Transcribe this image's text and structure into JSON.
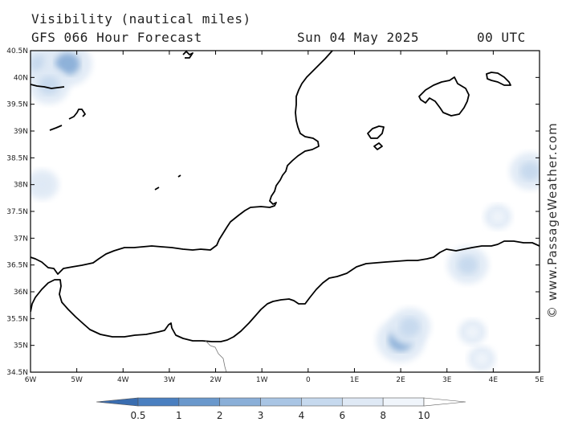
{
  "header": {
    "title": "Visibility (nautical miles)",
    "subtitle": "GFS 066 Hour Forecast",
    "date": "Sun 04 May 2025",
    "time": "00 UTC"
  },
  "map_data": {
    "region": {
      "lon_min": -6,
      "lon_max": 5,
      "lat_min": 34.5,
      "lat_max": 40.5
    },
    "lat_labels": [
      "40.5N",
      "40N",
      "39.5N",
      "39N",
      "38.5N",
      "38N",
      "37.5N",
      "37N",
      "36.5N",
      "36N",
      "35.5N",
      "35N",
      "34.5N"
    ],
    "lon_labels": [
      "6W",
      "5W",
      "4W",
      "3W",
      "2W",
      "1W",
      "0",
      "1E",
      "2E",
      "3E",
      "4E",
      "5E"
    ],
    "credit": "© www.PassageWeather.com",
    "legend": {
      "labels": [
        "0.5",
        "1",
        "2",
        "3",
        "4",
        "6",
        "8",
        "10"
      ],
      "colors": [
        "#4a7fc0",
        "#6a98cc",
        "#8aafd8",
        "#a9c5e4",
        "#c6d9ee",
        "#dfe9f5",
        "#f0f5fb"
      ]
    },
    "low_visibility_areas": [
      {
        "lon": -5.8,
        "lat": 40.25,
        "visibility": 4
      },
      {
        "lon": -5.2,
        "lat": 40.25,
        "visibility": 2
      },
      {
        "lon": -5.6,
        "lat": 39.85,
        "visibility": 4
      },
      {
        "lon": -5.75,
        "lat": 38.0,
        "visibility": 6
      },
      {
        "lon": 2.0,
        "lat": 35.1,
        "visibility": 2
      },
      {
        "lon": 2.2,
        "lat": 35.35,
        "visibility": 4
      },
      {
        "lon": 3.45,
        "lat": 36.5,
        "visibility": 4
      },
      {
        "lon": 4.8,
        "lat": 38.25,
        "visibility": 4
      },
      {
        "lon": 4.1,
        "lat": 37.4,
        "visibility": 8
      },
      {
        "lon": 3.55,
        "lat": 35.25,
        "visibility": 8
      },
      {
        "lon": 3.75,
        "lat": 34.75,
        "visibility": 8
      }
    ]
  }
}
